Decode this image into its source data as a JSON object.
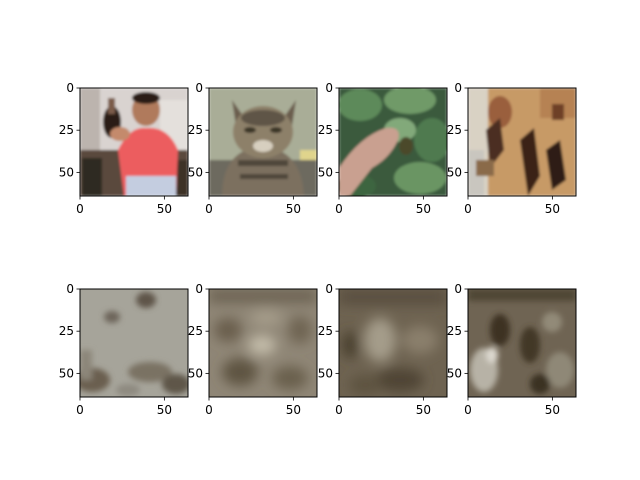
{
  "chart_data": {
    "type": "image-grid",
    "rows": 2,
    "cols": 4,
    "panels": [
      {
        "row": 0,
        "col": 0,
        "content": "person-photo",
        "xticks": [
          0,
          50
        ],
        "yticks": [
          0,
          25,
          50
        ],
        "xlim": [
          0,
          64
        ],
        "ylim": [
          64,
          0
        ]
      },
      {
        "row": 0,
        "col": 1,
        "content": "cat-photo",
        "xticks": [
          0,
          50
        ],
        "yticks": [
          0,
          25,
          50
        ],
        "xlim": [
          0,
          64
        ],
        "ylim": [
          64,
          0
        ]
      },
      {
        "row": 0,
        "col": 2,
        "content": "hand-leaves-photo",
        "xticks": [
          0,
          50
        ],
        "yticks": [
          0,
          25,
          50
        ],
        "xlim": [
          0,
          64
        ],
        "ylim": [
          64,
          0
        ]
      },
      {
        "row": 0,
        "col": 3,
        "content": "woven-object-photo",
        "xticks": [
          0,
          50
        ],
        "yticks": [
          0,
          25,
          50
        ],
        "xlim": [
          0,
          64
        ],
        "ylim": [
          64,
          0
        ]
      },
      {
        "row": 1,
        "col": 0,
        "content": "reconstruction-1",
        "xticks": [
          0,
          50
        ],
        "yticks": [
          0,
          25,
          50
        ],
        "xlim": [
          0,
          64
        ],
        "ylim": [
          64,
          0
        ]
      },
      {
        "row": 1,
        "col": 1,
        "content": "reconstruction-2",
        "xticks": [
          0,
          50
        ],
        "yticks": [
          0,
          25,
          50
        ],
        "xlim": [
          0,
          64
        ],
        "ylim": [
          64,
          0
        ]
      },
      {
        "row": 1,
        "col": 2,
        "content": "reconstruction-3",
        "xticks": [
          0,
          50
        ],
        "yticks": [
          0,
          25,
          50
        ],
        "xlim": [
          0,
          64
        ],
        "ylim": [
          64,
          0
        ]
      },
      {
        "row": 1,
        "col": 3,
        "content": "reconstruction-4",
        "xticks": [
          0,
          50
        ],
        "yticks": [
          0,
          25,
          50
        ],
        "xlim": [
          0,
          64
        ],
        "ylim": [
          64,
          0
        ]
      }
    ]
  }
}
